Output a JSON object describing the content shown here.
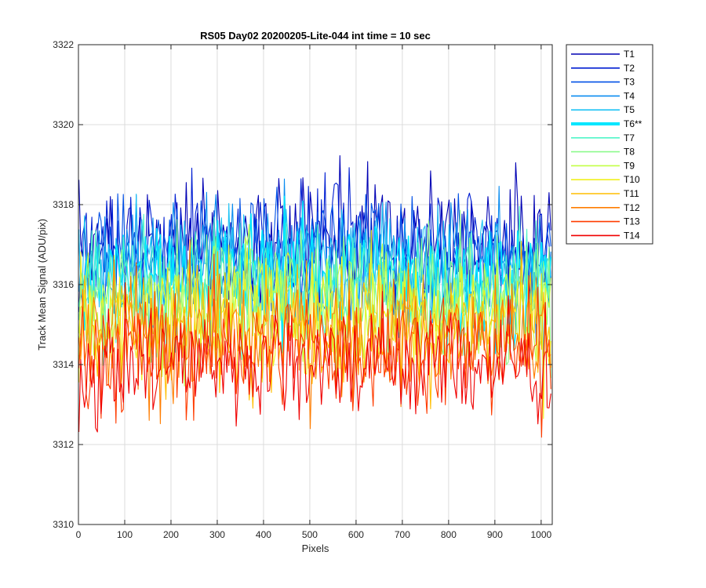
{
  "chart_data": {
    "type": "line",
    "title": "RS05 Day02 20200205-Lite-044 int time = 10 sec",
    "xlabel": "Pixels",
    "ylabel": "Track Mean Signal (ADU/pix)",
    "xlim": [
      0,
      1024
    ],
    "ylim": [
      3310,
      3322
    ],
    "xticks": [
      0,
      100,
      200,
      300,
      400,
      500,
      600,
      700,
      800,
      900,
      1000
    ],
    "yticks": [
      3310,
      3312,
      3314,
      3316,
      3318,
      3320,
      3322
    ],
    "grid": true,
    "legend_position": "outside-right",
    "x": {
      "start": 1,
      "end": 1024,
      "step": 4
    },
    "noise_amplitude": 1.1,
    "series": [
      {
        "name": "T1",
        "color": "#0000b4",
        "mean": 3316.9,
        "highlight": false
      },
      {
        "name": "T2",
        "color": "#001ed2",
        "mean": 3316.8,
        "highlight": false
      },
      {
        "name": "T3",
        "color": "#0050e6",
        "mean": 3316.6,
        "highlight": false
      },
      {
        "name": "T4",
        "color": "#0a8cf0",
        "mean": 3316.4,
        "highlight": false
      },
      {
        "name": "T5",
        "color": "#1ec3f5",
        "mean": 3316.2,
        "highlight": false
      },
      {
        "name": "T6**",
        "color": "#00e6ff",
        "mean": 3316.0,
        "highlight": true
      },
      {
        "name": "T7",
        "color": "#50f5c8",
        "mean": 3315.8,
        "highlight": false
      },
      {
        "name": "T8",
        "color": "#8cfa8c",
        "mean": 3315.6,
        "highlight": false
      },
      {
        "name": "T9",
        "color": "#c3ff46",
        "mean": 3315.3,
        "highlight": false
      },
      {
        "name": "T10",
        "color": "#f0f01e",
        "mean": 3315.1,
        "highlight": false
      },
      {
        "name": "T11",
        "color": "#ffbe00",
        "mean": 3314.8,
        "highlight": false
      },
      {
        "name": "T12",
        "color": "#ff7d00",
        "mean": 3314.5,
        "highlight": false
      },
      {
        "name": "T13",
        "color": "#ff3c00",
        "mean": 3314.2,
        "highlight": false
      },
      {
        "name": "T14",
        "color": "#f00000",
        "mean": 3313.9,
        "highlight": false
      }
    ]
  }
}
